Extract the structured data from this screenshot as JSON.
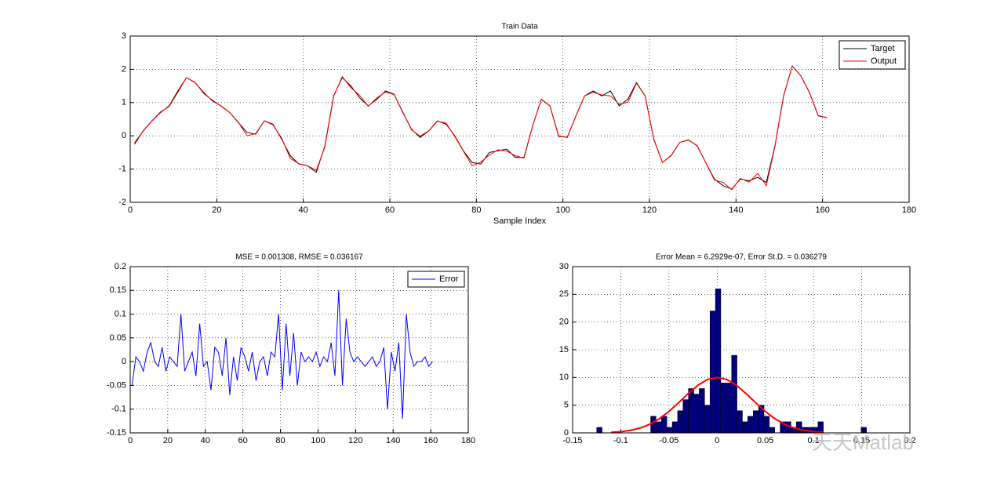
{
  "chart_data": [
    {
      "type": "line",
      "title": "Train Data",
      "x_label": "Sample Index",
      "x": [
        1,
        3,
        5,
        7,
        9,
        11,
        13,
        15,
        17,
        19,
        21,
        23,
        25,
        27,
        29,
        31,
        33,
        35,
        37,
        39,
        41,
        43,
        45,
        47,
        49,
        51,
        53,
        55,
        57,
        59,
        61,
        63,
        65,
        67,
        69,
        71,
        73,
        75,
        77,
        79,
        81,
        83,
        85,
        87,
        89,
        91,
        93,
        95,
        97,
        99,
        101,
        103,
        105,
        107,
        109,
        111,
        113,
        115,
        117,
        119,
        121,
        123,
        125,
        127,
        129,
        131,
        133,
        135,
        137,
        139,
        141,
        143,
        145,
        147,
        149,
        151,
        153,
        155,
        157,
        159,
        161
      ],
      "series": [
        {
          "name": "Target",
          "color": "#000000",
          "values": [
            -0.25,
            0.15,
            0.45,
            0.7,
            0.9,
            1.35,
            1.75,
            1.6,
            1.3,
            1.05,
            0.9,
            0.7,
            0.4,
            0.1,
            0.05,
            0.45,
            0.35,
            -0.1,
            -0.6,
            -0.85,
            -0.9,
            -1.1,
            -0.3,
            1.2,
            1.75,
            1.5,
            1.15,
            0.9,
            1.1,
            1.35,
            1.25,
            0.7,
            0.2,
            -0.05,
            0.15,
            0.45,
            0.35,
            0.0,
            -0.45,
            -0.8,
            -0.85,
            -0.5,
            -0.45,
            -0.4,
            -0.65,
            -0.65,
            0.3,
            1.1,
            0.9,
            0.0,
            -0.05,
            0.6,
            1.2,
            1.35,
            1.2,
            1.35,
            0.9,
            1.1,
            1.6,
            1.2,
            -0.1,
            -0.8,
            -0.6,
            -0.2,
            -0.12,
            -0.3,
            -0.8,
            -1.3,
            -1.5,
            -1.6,
            -1.3,
            -1.35,
            -1.25,
            -1.4,
            -0.3,
            1.2,
            2.1,
            1.8,
            1.3,
            0.6,
            0.55
          ]
        },
        {
          "name": "Output",
          "color": "#ff0000",
          "values": [
            -0.2,
            0.14,
            0.45,
            0.72,
            0.88,
            1.31,
            1.75,
            1.61,
            1.27,
            1.07,
            0.89,
            0.7,
            0.41,
            0.0,
            0.07,
            0.45,
            0.33,
            -0.07,
            -0.68,
            -0.84,
            -0.9,
            -1.04,
            -0.33,
            1.18,
            1.78,
            1.45,
            1.22,
            0.89,
            1.14,
            1.32,
            1.24,
            0.72,
            0.18,
            -0.01,
            0.15,
            0.44,
            0.38,
            -0.02,
            -0.46,
            -0.9,
            -0.79,
            -0.58,
            -0.42,
            -0.46,
            -0.6,
            -0.67,
            0.3,
            1.09,
            0.9,
            -0.02,
            -0.04,
            0.59,
            1.2,
            1.31,
            1.23,
            1.2,
            0.95,
            1.01,
            1.58,
            1.2,
            -0.11,
            -0.8,
            -0.59,
            -0.2,
            -0.13,
            -0.29,
            -0.8,
            -1.33,
            -1.4,
            -1.62,
            -1.28,
            -1.39,
            -1.13,
            -1.5,
            -0.32,
            1.21,
            2.1,
            1.8,
            1.29,
            0.61,
            0.55
          ]
        }
      ],
      "xlim": [
        0,
        180
      ],
      "xticks": [
        0,
        20,
        40,
        60,
        80,
        100,
        120,
        140,
        160,
        180
      ],
      "ylim": [
        -2,
        3
      ],
      "yticks": [
        -2,
        -1,
        0,
        1,
        2,
        3
      ],
      "grid": true,
      "legend": "upper right"
    },
    {
      "type": "line",
      "title": "MSE = 0.001308, RMSE = 0.036167",
      "x": [
        1,
        3,
        5,
        7,
        9,
        11,
        13,
        15,
        17,
        19,
        21,
        23,
        25,
        27,
        29,
        31,
        33,
        35,
        37,
        39,
        41,
        43,
        45,
        47,
        49,
        51,
        53,
        55,
        57,
        59,
        61,
        63,
        65,
        67,
        69,
        71,
        73,
        75,
        77,
        79,
        81,
        83,
        85,
        87,
        89,
        91,
        93,
        95,
        97,
        99,
        101,
        103,
        105,
        107,
        109,
        111,
        113,
        115,
        117,
        119,
        121,
        123,
        125,
        127,
        129,
        131,
        133,
        135,
        137,
        139,
        141,
        143,
        145,
        147,
        149,
        151,
        153,
        155,
        157,
        159,
        161
      ],
      "series": [
        {
          "name": "Error",
          "color": "#0000ff",
          "values": [
            -0.05,
            0.01,
            0.0,
            -0.02,
            0.02,
            0.04,
            0.0,
            -0.01,
            0.03,
            -0.02,
            0.01,
            0.0,
            -0.01,
            0.1,
            -0.02,
            0.0,
            0.02,
            -0.03,
            0.08,
            -0.01,
            0.0,
            -0.06,
            0.03,
            0.02,
            -0.03,
            0.05,
            -0.07,
            0.01,
            -0.04,
            0.03,
            0.01,
            -0.02,
            0.02,
            -0.04,
            0.0,
            0.01,
            -0.03,
            0.02,
            0.01,
            0.1,
            -0.06,
            0.08,
            -0.03,
            0.06,
            -0.05,
            0.02,
            0.0,
            0.01,
            0.0,
            0.02,
            -0.01,
            0.01,
            0.0,
            0.04,
            -0.03,
            0.15,
            -0.05,
            0.09,
            0.02,
            0.0,
            0.01,
            0.0,
            -0.01,
            0.0,
            0.01,
            -0.01,
            0.0,
            0.03,
            -0.1,
            0.02,
            -0.02,
            0.04,
            -0.12,
            0.1,
            0.02,
            -0.01,
            0.0,
            0.0,
            0.01,
            -0.01,
            0.0
          ]
        }
      ],
      "xlim": [
        0,
        180
      ],
      "xticks": [
        0,
        20,
        40,
        60,
        80,
        100,
        120,
        140,
        160,
        180
      ],
      "ylim": [
        -0.15,
        0.2
      ],
      "yticks": [
        -0.15,
        -0.1,
        -0.05,
        0,
        0.05,
        0.1,
        0.15,
        0.2
      ],
      "grid": true,
      "legend": "upper right"
    },
    {
      "type": "histogram",
      "title": "Error Mean = 6.2929e-07, Error St.D. = 0.036279",
      "bins": [
        -0.125,
        -0.1194,
        -0.1138,
        -0.1082,
        -0.1026,
        -0.097,
        -0.0914,
        -0.0858,
        -0.0802,
        -0.0746,
        -0.069,
        -0.0634,
        -0.0578,
        -0.0522,
        -0.0466,
        -0.041,
        -0.0354,
        -0.0298,
        -0.0242,
        -0.0186,
        -0.013,
        -0.0074,
        -0.0018,
        0.0038,
        0.0094,
        0.015,
        0.0206,
        0.0262,
        0.0318,
        0.0374,
        0.043,
        0.0486,
        0.0542,
        0.0598,
        0.0654,
        0.071,
        0.0766,
        0.0822,
        0.0878,
        0.0934,
        0.099,
        0.1046,
        0.1102,
        0.1158,
        0.1214,
        0.127,
        0.1326,
        0.1382,
        0.1438,
        0.1494,
        0.155
      ],
      "counts": [
        1,
        0,
        0,
        0,
        0,
        0,
        0,
        0,
        0,
        0,
        3,
        2,
        3,
        1,
        2,
        4,
        6,
        8,
        7,
        8,
        5,
        22,
        26,
        9,
        9,
        14,
        4,
        2,
        3,
        4,
        5,
        3,
        1,
        0,
        2,
        2,
        1,
        2,
        1,
        1,
        1,
        2,
        0,
        0,
        0,
        0,
        0,
        0,
        0,
        1
      ],
      "color": "#00007f",
      "fit": {
        "color": "#ff0000",
        "x": [
          -0.11,
          -0.1,
          -0.09,
          -0.08,
          -0.07,
          -0.06,
          -0.05,
          -0.04,
          -0.03,
          -0.02,
          -0.01,
          0,
          0.01,
          0.02,
          0.03,
          0.04,
          0.05,
          0.06,
          0.07,
          0.08,
          0.09,
          0.1,
          0.11
        ],
        "y": [
          0.1,
          0.22,
          0.46,
          0.88,
          1.55,
          2.55,
          3.87,
          5.44,
          7.1,
          8.59,
          9.63,
          10,
          9.63,
          8.59,
          7.1,
          5.44,
          3.87,
          2.55,
          1.55,
          0.88,
          0.46,
          0.22,
          0.1
        ]
      },
      "xlim": [
        -0.15,
        0.2
      ],
      "xticks": [
        -0.15,
        -0.1,
        -0.05,
        0,
        0.05,
        0.1,
        0.15,
        0.2
      ],
      "ylim": [
        0,
        30
      ],
      "yticks": [
        0,
        5,
        10,
        15,
        20,
        25,
        30
      ],
      "grid": true
    }
  ],
  "watermark": "天天Matlab"
}
